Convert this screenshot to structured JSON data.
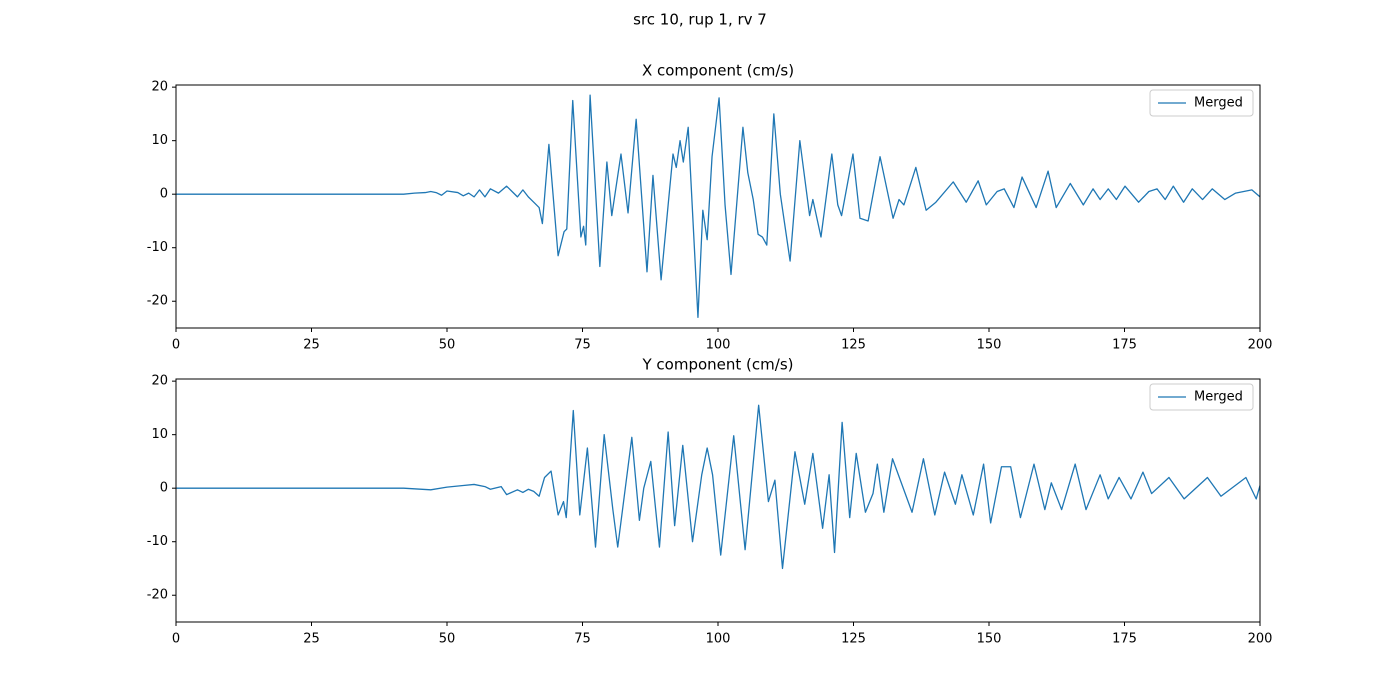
{
  "title": "src 10, rup 1, rv 7",
  "chart_data": [
    {
      "type": "line",
      "title": "X component (cm/s)",
      "x": [
        0,
        42,
        44,
        46,
        47,
        48,
        49,
        50,
        52,
        53,
        54,
        55,
        56,
        57,
        58,
        59.5,
        61,
        62,
        63,
        64,
        65,
        66,
        67,
        67.6,
        68.8,
        70.5,
        71.6,
        72.1,
        73.2,
        74.7,
        75.2,
        75.6,
        76.4,
        78.2,
        79.5,
        80.4,
        82.1,
        83.4,
        84.9,
        86.9,
        88,
        89.5,
        90.8,
        91.7,
        92.3,
        93,
        93.6,
        94.5,
        96.3,
        97.2,
        98,
        98.9,
        100.2,
        101.3,
        102.4,
        104.6,
        105.5,
        106.5,
        107.4,
        108.2,
        109,
        110.3,
        111.5,
        113.3,
        115.1,
        116.9,
        117.5,
        119,
        121,
        122.1,
        122.8,
        124.9,
        126.2,
        127.7,
        129.9,
        132.3,
        133.4,
        134.3,
        136.5,
        138.4,
        140.2,
        143.4,
        145.8,
        148,
        149.5,
        151.5,
        152.8,
        154.6,
        156.1,
        158.7,
        160.9,
        162.4,
        165,
        167.4,
        169.2,
        170.5,
        172,
        173.5,
        175.1,
        177.6,
        179.5,
        181,
        182.5,
        184,
        185.9,
        187.5,
        189.4,
        191.2,
        193.5,
        195.5,
        197,
        198.5,
        200
      ],
      "series": [
        {
          "name": "Merged",
          "color": "#1f77b4",
          "values": [
            0,
            0,
            0.2,
            0.3,
            0.5,
            0.3,
            -0.2,
            0.6,
            0.3,
            -0.3,
            0.2,
            -0.5,
            0.8,
            -0.5,
            1,
            0.2,
            1.5,
            0.5,
            -0.5,
            0.8,
            -0.5,
            -1.5,
            -2.5,
            -5.5,
            9.3,
            -11.5,
            -7,
            -6.5,
            17.5,
            -8,
            -6,
            -9.5,
            18.5,
            -13.5,
            6,
            -4,
            7.5,
            -3.5,
            14,
            -14.5,
            3.5,
            -16,
            -2,
            7.5,
            5,
            10,
            6,
            12.5,
            -23,
            -3,
            -8.5,
            7,
            18,
            -2,
            -15,
            12.5,
            4,
            -1,
            -7.5,
            -8,
            -9.5,
            15,
            0,
            -12.5,
            10,
            -4,
            -1,
            -8,
            7.5,
            -2,
            -4,
            7.5,
            -4.5,
            -5,
            7,
            -4.5,
            -1,
            -2,
            5,
            -3,
            -1.5,
            2.3,
            -1.5,
            2.5,
            -2,
            0.5,
            1,
            -2.5,
            3.2,
            -2.5,
            4.3,
            -2.5,
            2,
            -2,
            1,
            -1,
            1,
            -1,
            1.5,
            -1.5,
            0.5,
            1,
            -1,
            1.5,
            -1.5,
            1,
            -1,
            1,
            -1,
            0.2,
            0.5,
            0.8,
            -0.5
          ]
        }
      ],
      "xlim": [
        0,
        200
      ],
      "ylim": [
        -25,
        20.4
      ],
      "xticks": [
        0,
        25,
        50,
        75,
        100,
        125,
        150,
        175,
        200
      ],
      "yticks": [
        -20,
        -10,
        0,
        10,
        20
      ],
      "legend": "upper right"
    },
    {
      "type": "line",
      "title": "Y component (cm/s)",
      "x": [
        0,
        42,
        47,
        50,
        53,
        55,
        57,
        58,
        60,
        61,
        63,
        64,
        65,
        66,
        67,
        68,
        69.2,
        70.5,
        71.5,
        72,
        73.3,
        74.5,
        75.9,
        77.4,
        79,
        80.6,
        81.5,
        84.1,
        85.5,
        86.3,
        87.6,
        89.2,
        90.8,
        92,
        93.5,
        95.3,
        97,
        98,
        99,
        100.5,
        102.9,
        105,
        107.5,
        109.3,
        110.5,
        111.9,
        114.2,
        116,
        117.5,
        119.3,
        120.5,
        121.5,
        122.9,
        124.3,
        125.5,
        127.2,
        128.6,
        129.4,
        130.6,
        132.2,
        135.8,
        137.9,
        140,
        141.8,
        143.8,
        145,
        147.1,
        149,
        150.3,
        152.3,
        154,
        155.8,
        158.3,
        160.3,
        161.5,
        163.4,
        165.9,
        167.9,
        170.5,
        172,
        174,
        176.2,
        178.4,
        180,
        183.2,
        186,
        190.3,
        192.8,
        197.4,
        199.3,
        200
      ],
      "series": [
        {
          "name": "Merged",
          "color": "#1f77b4",
          "values": [
            0,
            0,
            -0.3,
            0.2,
            0.5,
            0.7,
            0.3,
            -0.2,
            0.3,
            -1.2,
            -0.3,
            -0.8,
            -0.2,
            -0.6,
            -1.5,
            2,
            3.2,
            -5,
            -2.5,
            -5.5,
            14.5,
            -5,
            7.5,
            -11,
            10,
            -4,
            -11,
            9.5,
            -6,
            0,
            5,
            -11,
            10.5,
            -7,
            8,
            -10,
            2.5,
            7.5,
            2.5,
            -12.5,
            9.8,
            -11.5,
            15.5,
            -2.5,
            1.5,
            -15,
            6.8,
            -3,
            6.5,
            -7.5,
            2.5,
            -12,
            12.3,
            -5.5,
            6.5,
            -4.5,
            -1,
            4.5,
            -4.5,
            5.5,
            -4.5,
            5.5,
            -5,
            3,
            -3,
            2.5,
            -5,
            4.5,
            -6.5,
            4,
            4,
            -5.5,
            4.5,
            -4,
            1,
            -4,
            4.5,
            -4,
            2.5,
            -2,
            2,
            -2,
            3,
            -1,
            2,
            -2,
            2,
            -1.5,
            2,
            -2,
            0.5
          ]
        }
      ],
      "xlim": [
        0,
        200
      ],
      "ylim": [
        -25,
        20.4
      ],
      "xticks": [
        0,
        25,
        50,
        75,
        100,
        125,
        150,
        175,
        200
      ],
      "yticks": [
        -20,
        -10,
        0,
        10,
        20
      ],
      "legend": "upper right"
    }
  ]
}
